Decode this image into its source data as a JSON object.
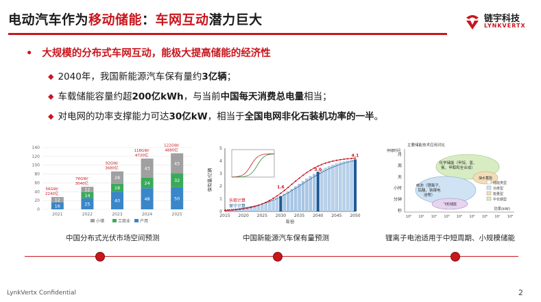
{
  "header": {
    "title_part1": "电动汽车作为",
    "title_part2": "移动储能",
    "title_part3": "：",
    "title_part4": "车网互动",
    "title_part5": "潜力巨大",
    "logo_cn": "链宇科技",
    "logo_en": "LYNKVERTX"
  },
  "main_bullet": {
    "marker": "•",
    "text": "大规模的分布式车网互动，能极大提高储能的经济性"
  },
  "sub_bullets": [
    {
      "pre": "2040年，我国新能源汽车保有量约",
      "bold": "3亿辆",
      "post": "；"
    },
    {
      "pre": "车载储能容量约超",
      "bold": "200亿kWh",
      "mid": "，与当前",
      "bold2": "中国每天消费总电量",
      "post": "相当；"
    },
    {
      "pre": "对电网的功率支撑能力可达",
      "bold": "30亿kW",
      "mid": "，相当于",
      "bold2": "全国电网非化石装机功率的一半",
      "post": "。"
    }
  ],
  "captions": {
    "chart1": "中国分布式光伏市场空间预测",
    "chart2": "中国新能源汽车保有量预测",
    "chart3": "锂离子电池适用于中短周期、小规模储能"
  },
  "chart_data": [
    {
      "type": "bar",
      "categories": [
        "2021",
        "2022",
        "2023",
        "2024",
        "2025"
      ],
      "ylim": [
        0,
        140
      ],
      "yticks": [
        "0",
        "20",
        "40",
        "60",
        "80",
        "100",
        "120",
        "140"
      ],
      "series": [
        {
          "name": "户用",
          "color": "#3a86c8",
          "values": [
            16,
            25,
            40,
            48,
            50
          ]
        },
        {
          "name": "工商业",
          "color": "#3aaa5a",
          "values": [
            0,
            14,
            18,
            24,
            32
          ]
        },
        {
          "name": "小储",
          "color": "#a0a0a0",
          "values": [
            12,
            12,
            28,
            43,
            45
          ]
        }
      ],
      "segment_labels": [
        [
          "16",
          "",
          "12"
        ],
        [
          "25",
          "14",
          "12"
        ],
        [
          "40",
          "18",
          "28"
        ],
        [
          "48",
          "24",
          "43"
        ],
        [
          "50",
          "32",
          "45"
        ]
      ],
      "annotations": [
        "56GW/\n2240亿",
        "76GW/\n3040亿",
        "92GW/\n3680亿",
        "118GW/\n4720亿",
        "122GW/\n4880亿"
      ],
      "legend": [
        "小储",
        "工商业",
        "户用"
      ]
    },
    {
      "type": "bar",
      "categories": [
        "2015",
        "2020",
        "2025",
        "2030",
        "2035",
        "2040",
        "2045",
        "2050"
      ],
      "ylim": [
        0,
        5
      ],
      "yticks": [
        "0",
        "1",
        "2",
        "3",
        "4",
        "5"
      ],
      "xlabel": "年份",
      "ylabel": "保有量/亿辆",
      "data_labels": [
        "1.6",
        "3.0",
        "4.1"
      ],
      "legend": [
        "乐观计算",
        "保守计算"
      ]
    },
    {
      "type": "bubble",
      "title": "主要储能技术应用对比",
      "y_labels": [
        "存储时间",
        "月",
        "周",
        "天",
        "小时",
        "分钟",
        "秒"
      ],
      "x_label": "功率(kW)",
      "x_ticks": [
        "10⁰",
        "10¹",
        "10²",
        "10³",
        "10⁴",
        "10⁵",
        "10⁶",
        "10⁷",
        "10⁸"
      ],
      "bubbles": [
        "化学储能（甲烷、氢、氨、甲醇和全合成）",
        "抽水蓄能",
        "电池（锂离子、铅酸、钠镍电池等）",
        "飞轮储能"
      ],
      "legend": [
        "储能类型",
        "功率型",
        "能量型",
        "中长期型"
      ]
    }
  ],
  "footer": {
    "left": "LynkVertx Confidential",
    "page": "2"
  }
}
